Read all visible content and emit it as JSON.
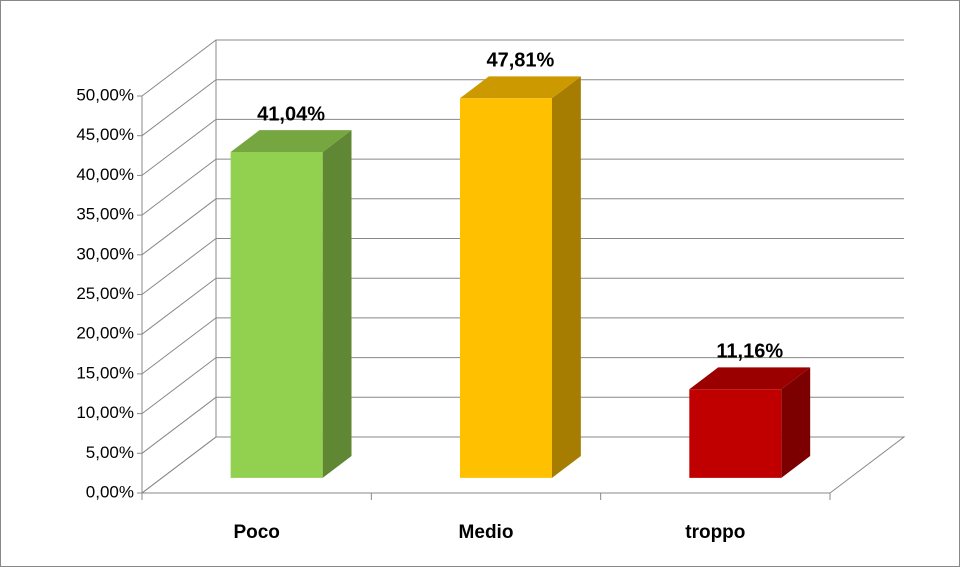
{
  "chart_data": {
    "type": "bar3d",
    "categories": [
      "Poco",
      "Medio",
      "troppo"
    ],
    "values": [
      41.04,
      47.81,
      11.16
    ],
    "value_labels": [
      "41,04%",
      "47,81%",
      "11,16%"
    ],
    "colors": [
      "#92d050",
      "#ffc000",
      "#c00000"
    ],
    "ylim": [
      0,
      50
    ],
    "yticks": [
      {
        "value": 0,
        "label": "0,00%"
      },
      {
        "value": 5,
        "label": "5,00%"
      },
      {
        "value": 10,
        "label": "10,00%"
      },
      {
        "value": 15,
        "label": "15,00%"
      },
      {
        "value": 20,
        "label": "20,00%"
      },
      {
        "value": 25,
        "label": "25,00%"
      },
      {
        "value": 30,
        "label": "30,00%"
      },
      {
        "value": 35,
        "label": "35,00%"
      },
      {
        "value": 40,
        "label": "40,00%"
      },
      {
        "value": 45,
        "label": "45,00%"
      },
      {
        "value": 50,
        "label": "50,00%"
      }
    ],
    "grid": true
  }
}
